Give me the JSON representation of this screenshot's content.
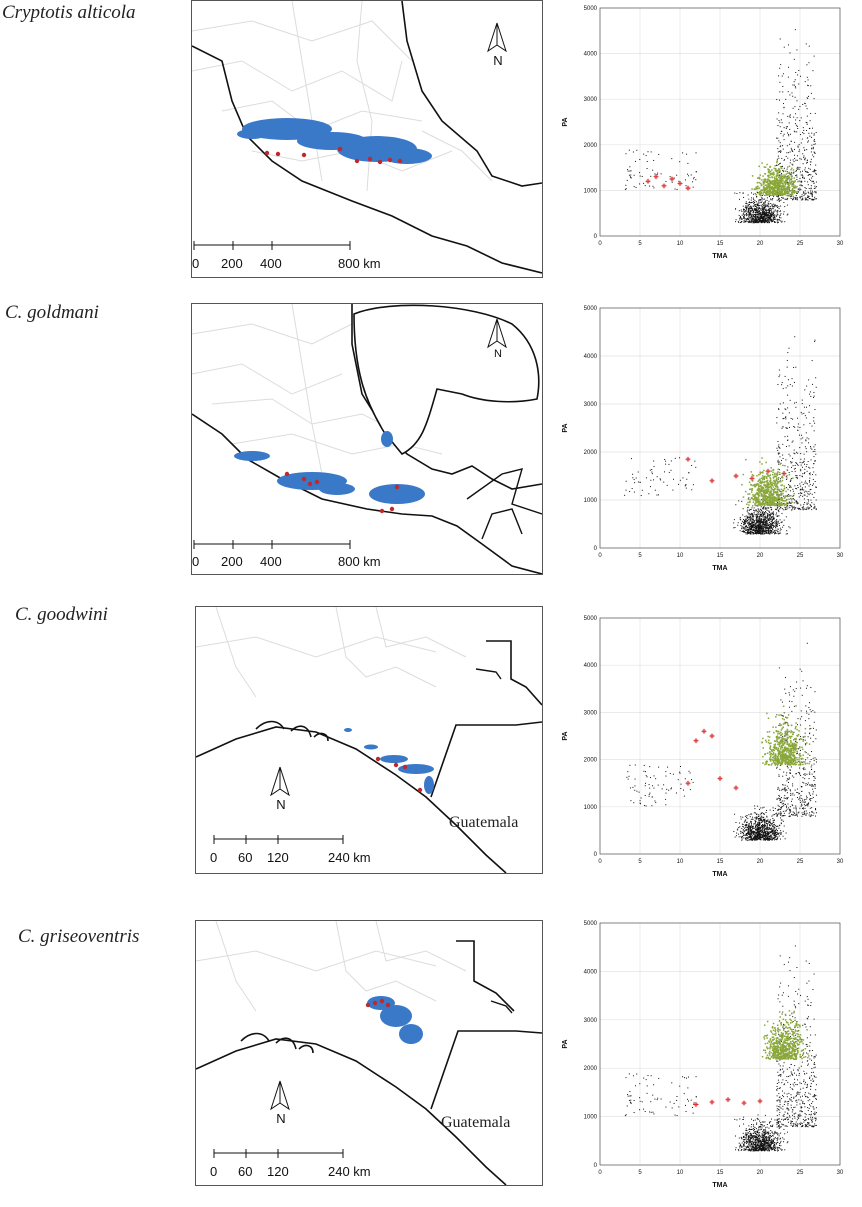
{
  "panels": [
    {
      "species": "Cryptotis alticola",
      "scale_ticks": [
        "0",
        "200",
        "400",
        "800 km"
      ],
      "country_label": "",
      "plot": {
        "xlabel": "TMA",
        "ylabel": "PA",
        "xticks": [
          "0",
          "5",
          "10",
          "15",
          "20",
          "25",
          "30"
        ],
        "yticks": [
          "0",
          "1000",
          "2000",
          "3000",
          "4000",
          "5000"
        ]
      }
    },
    {
      "species": "C. goldmani",
      "scale_ticks": [
        "0",
        "200",
        "400",
        "800 km"
      ],
      "country_label": "",
      "plot": {
        "xlabel": "TMA",
        "ylabel": "PA",
        "xticks": [
          "0",
          "5",
          "10",
          "15",
          "20",
          "25",
          "30"
        ],
        "yticks": [
          "0",
          "1000",
          "2000",
          "3000",
          "4000",
          "5000"
        ]
      }
    },
    {
      "species": "C. goodwini",
      "scale_ticks": [
        "0",
        "60",
        "120",
        "240 km"
      ],
      "country_label": "Guatemala",
      "plot": {
        "xlabel": "TMA",
        "ylabel": "PA",
        "xticks": [
          "0",
          "5",
          "10",
          "15",
          "20",
          "25",
          "30"
        ],
        "yticks": [
          "0",
          "1000",
          "2000",
          "3000",
          "4000",
          "5000"
        ]
      }
    },
    {
      "species": "C. griseoventris",
      "scale_ticks": [
        "0",
        "60",
        "120",
        "240 km"
      ],
      "country_label": "Guatemala",
      "plot": {
        "xlabel": "TMA",
        "ylabel": "PA",
        "xticks": [
          "0",
          "5",
          "10",
          "15",
          "20",
          "25",
          "30"
        ],
        "yticks": [
          "0",
          "1000",
          "2000",
          "3000",
          "4000",
          "5000"
        ]
      }
    }
  ],
  "north_letter": "N",
  "colors": {
    "suitable_area": "#3a78c8",
    "occurrence_points": "#c0282a",
    "background_points": "#111111",
    "model_points": "#8aa83a",
    "record_points": "#e8a0a0",
    "record_cross": "#e03030"
  },
  "chart_data": [
    {
      "type": "scatter",
      "title": "",
      "xlabel": "TMA",
      "ylabel": "PA",
      "xlim": [
        0,
        30
      ],
      "ylim": [
        0,
        5000
      ],
      "series": [],
      "records": [
        [
          6,
          1200
        ],
        [
          7,
          1300
        ],
        [
          8,
          1100
        ],
        [
          9,
          1250
        ],
        [
          10,
          1150
        ],
        [
          11,
          1050
        ]
      ]
    },
    {
      "type": "scatter",
      "title": "",
      "xlabel": "TMA",
      "ylabel": "PA",
      "xlim": [
        0,
        30
      ],
      "ylim": [
        0,
        5000
      ],
      "series": [],
      "records": [
        [
          11,
          1850
        ],
        [
          14,
          1400
        ],
        [
          17,
          1500
        ],
        [
          19,
          1450
        ],
        [
          21,
          1600
        ],
        [
          23,
          1550
        ]
      ]
    },
    {
      "type": "scatter",
      "title": "",
      "xlabel": "TMA",
      "ylabel": "PA",
      "xlim": [
        0,
        30
      ],
      "ylim": [
        0,
        5000
      ],
      "series": [],
      "records": [
        [
          11,
          1500
        ],
        [
          12,
          2400
        ],
        [
          13,
          2600
        ],
        [
          14,
          2500
        ],
        [
          15,
          1600
        ],
        [
          17,
          1400
        ]
      ]
    },
    {
      "type": "scatter",
      "title": "",
      "xlabel": "TMA",
      "ylabel": "PA",
      "xlim": [
        0,
        30
      ],
      "ylim": [
        0,
        5000
      ],
      "series": [],
      "records": [
        [
          12,
          1250
        ],
        [
          14,
          1300
        ],
        [
          16,
          1350
        ],
        [
          18,
          1280
        ],
        [
          20,
          1320
        ]
      ]
    }
  ]
}
